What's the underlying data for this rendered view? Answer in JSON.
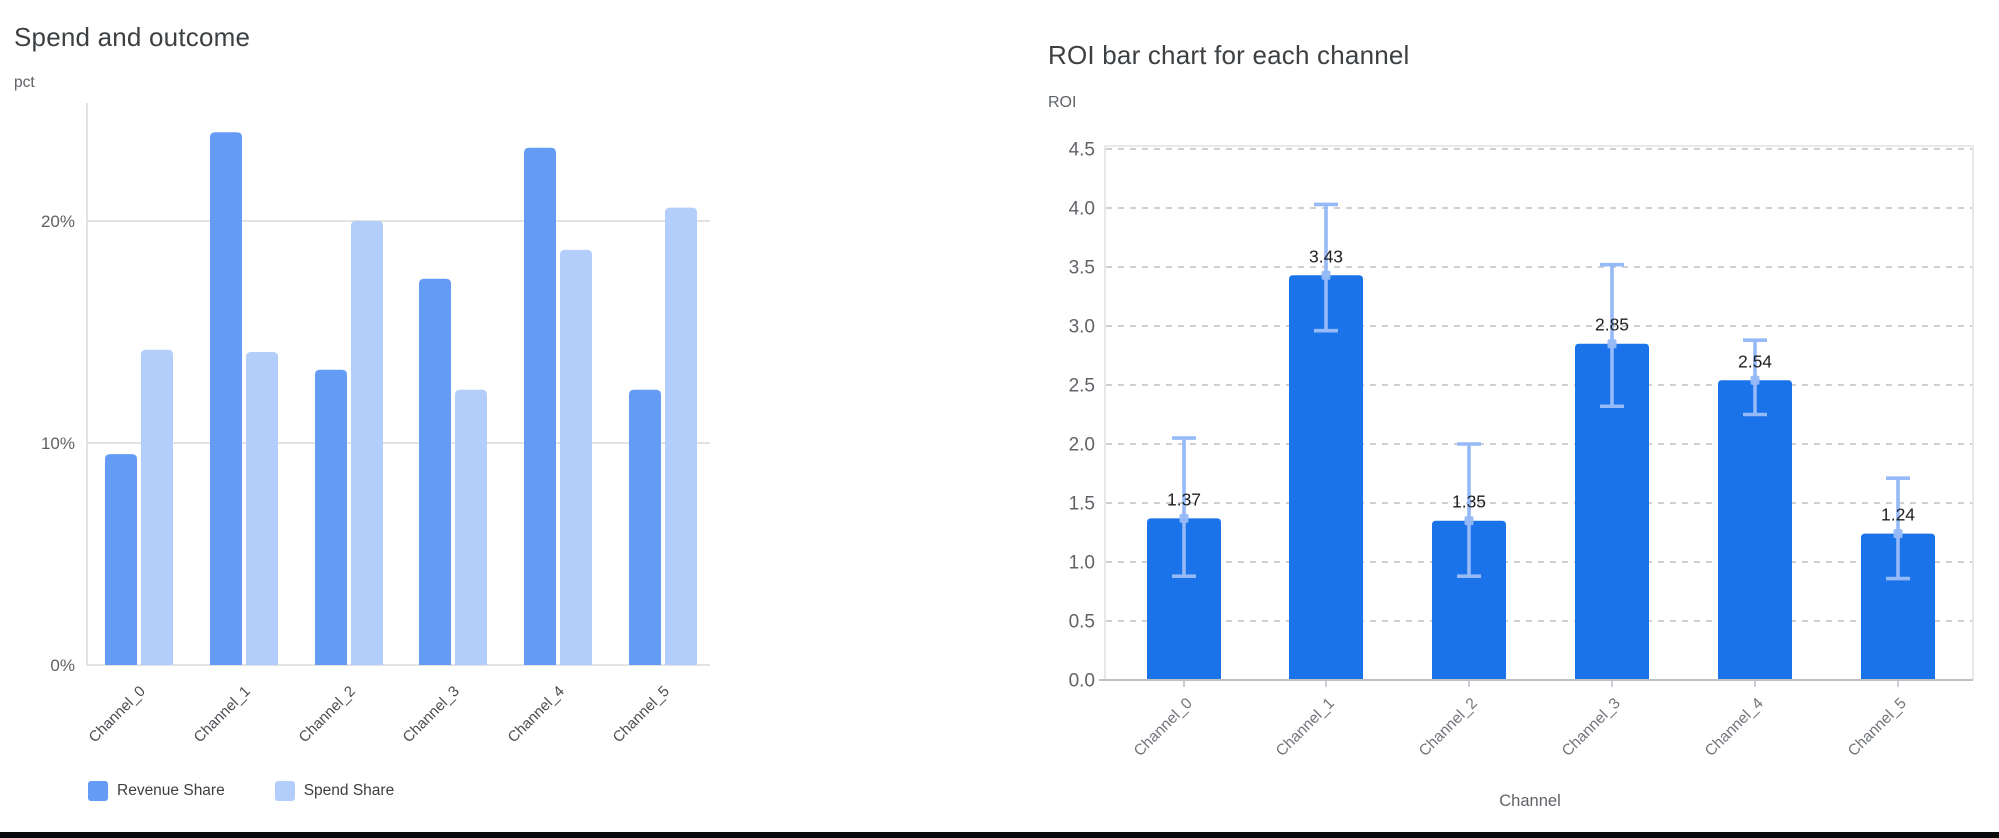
{
  "window": {
    "background": "#ffffff",
    "bottom_edge_color": "#0a0a0c"
  },
  "chart_data": [
    {
      "id": "spend-and-outcome",
      "type": "bar",
      "title": "Spend and outcome",
      "ylabel": "pct",
      "xlabel": "",
      "categories": [
        "Channel_0",
        "Channel_1",
        "Channel_2",
        "Channel_3",
        "Channel_4",
        "Channel_5"
      ],
      "series": [
        {
          "name": "Revenue Share",
          "color": "#649bf5",
          "values": [
            9.5,
            24.0,
            13.3,
            17.4,
            23.3,
            12.4
          ]
        },
        {
          "name": "Spend Share",
          "color": "#b3cefa",
          "values": [
            14.2,
            14.1,
            20.0,
            12.4,
            18.7,
            20.6
          ]
        }
      ],
      "y_ticks": [
        {
          "v": 0,
          "label": "0%"
        },
        {
          "v": 10,
          "label": "10%"
        },
        {
          "v": 20,
          "label": "20%"
        }
      ],
      "ylim": [
        0,
        25.5
      ],
      "grid": "solid",
      "legend_position": "bottom"
    },
    {
      "id": "roi-by-channel",
      "type": "bar",
      "title": "ROI bar chart for each channel",
      "ylabel": "ROI",
      "xlabel": "Channel",
      "categories": [
        "Channel_0",
        "Channel_1",
        "Channel_2",
        "Channel_3",
        "Channel_4",
        "Channel_5"
      ],
      "series": [
        {
          "name": "ROI",
          "color": "#1a73e8",
          "values": [
            1.37,
            3.43,
            1.35,
            2.85,
            2.54,
            1.24
          ]
        }
      ],
      "data_labels": [
        "1.37",
        "3.43",
        "1.35",
        "2.85",
        "2.54",
        "1.24"
      ],
      "error_bars": {
        "color": "#96b9f7",
        "low": [
          0.88,
          2.96,
          0.88,
          2.32,
          2.25,
          0.86
        ],
        "high": [
          2.05,
          4.03,
          2.0,
          3.52,
          2.88,
          1.71
        ]
      },
      "y_ticks": [
        {
          "v": 0.0,
          "label": "0.0"
        },
        {
          "v": 0.5,
          "label": "0.5"
        },
        {
          "v": 1.0,
          "label": "1.0"
        },
        {
          "v": 1.5,
          "label": "1.5"
        },
        {
          "v": 2.0,
          "label": "2.0"
        },
        {
          "v": 2.5,
          "label": "2.5"
        },
        {
          "v": 3.0,
          "label": "3.0"
        },
        {
          "v": 3.5,
          "label": "3.5"
        },
        {
          "v": 4.0,
          "label": "4.0"
        },
        {
          "v": 4.5,
          "label": "4.5"
        }
      ],
      "ylim": [
        0,
        4.53
      ],
      "grid": "dashed",
      "legend_position": "none"
    }
  ]
}
